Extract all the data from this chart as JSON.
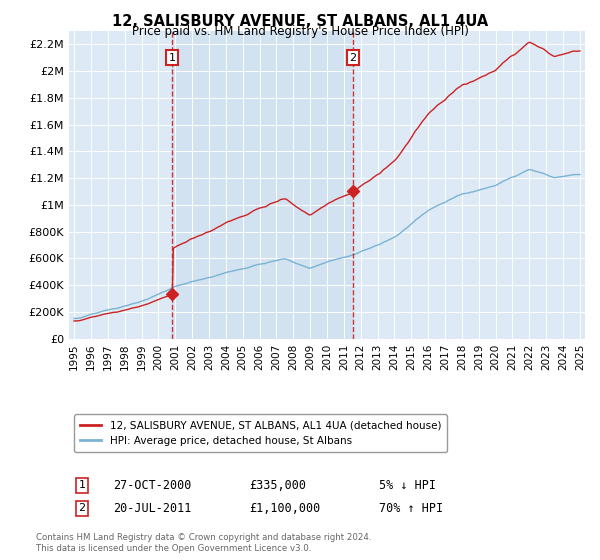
{
  "title": "12, SALISBURY AVENUE, ST ALBANS, AL1 4UA",
  "subtitle": "Price paid vs. HM Land Registry's House Price Index (HPI)",
  "hpi_color": "#7ab3d4",
  "price_color": "#cc2222",
  "background_color": "#ddeaf5",
  "ylim": [
    0,
    2300000
  ],
  "yticks": [
    0,
    200000,
    400000,
    600000,
    800000,
    1000000,
    1200000,
    1400000,
    1600000,
    1800000,
    2000000,
    2200000
  ],
  "ytick_labels": [
    "£0",
    "£200K",
    "£400K",
    "£600K",
    "£800K",
    "£1M",
    "£1.2M",
    "£1.4M",
    "£1.6M",
    "£1.8M",
    "£2M",
    "£2.2M"
  ],
  "sale1_x": 2000.82,
  "sale1_y": 335000,
  "sale2_x": 2011.55,
  "sale2_y": 1100000,
  "sale1_label": "1",
  "sale2_label": "2",
  "sale1_date": "27-OCT-2000",
  "sale1_price": "£335,000",
  "sale1_hpi": "5% ↓ HPI",
  "sale2_date": "20-JUL-2011",
  "sale2_price": "£1,100,000",
  "sale2_hpi": "70% ↑ HPI",
  "legend_line1": "12, SALISBURY AVENUE, ST ALBANS, AL1 4UA (detached house)",
  "legend_line2": "HPI: Average price, detached house, St Albans",
  "footer": "Contains HM Land Registry data © Crown copyright and database right 2024.\nThis data is licensed under the Open Government Licence v3.0.",
  "xmin": 1994.7,
  "xmax": 2025.3
}
